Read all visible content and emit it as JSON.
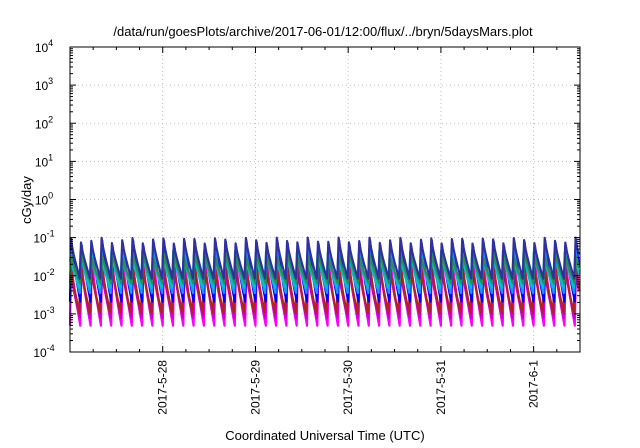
{
  "chart_data": {
    "type": "line",
    "title": "/data/run/goesPlots/archive/2017-06-01/12:00/flux/../bryn/5daysMars.plot",
    "xlabel": "Coordinated Universal Time (UTC)",
    "ylabel": "cGy/day",
    "yscale": "log",
    "ylim": [
      0.0001,
      10000
    ],
    "xlim": [
      "2017-05-27 00:00",
      "2017-06-01 12:00"
    ],
    "grid": true,
    "legend": "none",
    "y_ticks": [
      {
        "base": "10",
        "exp": "4",
        "value": 10000
      },
      {
        "base": "10",
        "exp": "3",
        "value": 1000
      },
      {
        "base": "10",
        "exp": "2",
        "value": 100
      },
      {
        "base": "10",
        "exp": "1",
        "value": 10
      },
      {
        "base": "10",
        "exp": "0",
        "value": 1
      },
      {
        "base": "10",
        "exp": "-1",
        "value": 0.1
      },
      {
        "base": "10",
        "exp": "-2",
        "value": 0.01
      },
      {
        "base": "10",
        "exp": "-3",
        "value": 0.001
      },
      {
        "base": "10",
        "exp": "-4",
        "value": 0.0001
      }
    ],
    "x_ticks": [
      {
        "label": "2017-5-28",
        "day": 1
      },
      {
        "label": "2017-5-29",
        "day": 2
      },
      {
        "label": "2017-5-30",
        "day": 3
      },
      {
        "label": "2017-5-31",
        "day": 4
      },
      {
        "label": "2017-6-1",
        "day": 5
      }
    ],
    "oscillation": {
      "cycles_per_day": 9,
      "peak_value": 0.085,
      "trough_value": 0.0007
    },
    "series": [
      {
        "color": "#ff00ff",
        "peak_factor": 0.28,
        "trough_factor": 0.7
      },
      {
        "color": "#cc00cc",
        "peak_factor": 0.2,
        "trough_factor": 1.1
      },
      {
        "color": "#b22222",
        "peak_factor": 0.3,
        "trough_factor": 1.5
      },
      {
        "color": "#0000ff",
        "peak_factor": 0.85,
        "trough_factor": 3.0
      },
      {
        "color": "#1e90ff",
        "peak_factor": 0.55,
        "trough_factor": 5.0
      },
      {
        "color": "#00c0c0",
        "peak_factor": 0.45,
        "trough_factor": 7.0
      },
      {
        "color": "#2e8b57",
        "peak_factor": 0.4,
        "trough_factor": 9.0
      },
      {
        "color": "#3030a0",
        "peak_factor": 1.0,
        "trough_factor": 12.0
      }
    ]
  }
}
